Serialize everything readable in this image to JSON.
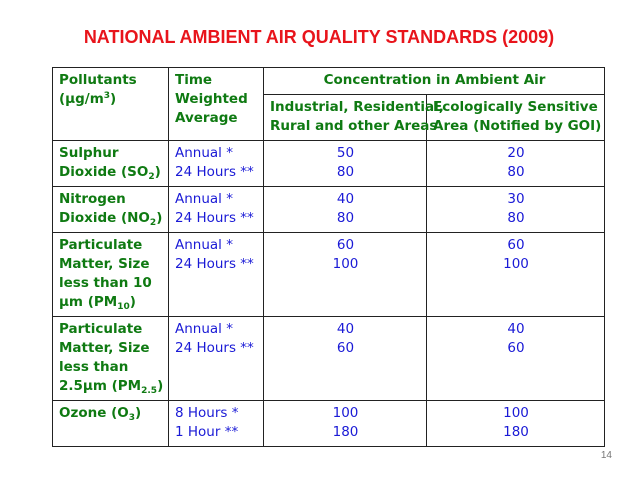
{
  "title": "NATIONAL AMBIENT AIR QUALITY STANDARDS (2009)",
  "header": {
    "pollutants": "Pollutants",
    "unit_prefix": "(µg/m",
    "unit_sup": "3",
    "unit_suffix": ")",
    "time_line1": "Time",
    "time_line2": "Weighted",
    "time_line3": "Average",
    "concentration": "Concentration in Ambient Air",
    "col1_line1": "Industrial, Residential,",
    "col1_line2": "Rural and other Areas",
    "col2_line1": "Ecologically Sensitive",
    "col2_line2": "Area (Notified by GOI)"
  },
  "rows": [
    {
      "name": [
        "Sulphur",
        "Dioxide (SO"
      ],
      "name_sub": "2",
      "name_tail": ")",
      "time": [
        "Annual *",
        "24 Hours **"
      ],
      "industrial": [
        "50",
        "80"
      ],
      "sensitive": [
        "20",
        "80"
      ]
    },
    {
      "name": [
        "Nitrogen",
        "Dioxide (NO"
      ],
      "name_sub": "2",
      "name_tail": ")",
      "time": [
        "Annual *",
        "24 Hours **"
      ],
      "industrial": [
        "40",
        "80"
      ],
      "sensitive": [
        "30",
        "80"
      ]
    },
    {
      "name": [
        "Particulate",
        "Matter, Size",
        "less than 10",
        "µm (PM"
      ],
      "name_sub": "10",
      "name_tail": ")",
      "time": [
        "Annual *",
        "24 Hours **"
      ],
      "industrial": [
        "60",
        "100"
      ],
      "sensitive": [
        "60",
        "100"
      ]
    },
    {
      "name": [
        "Particulate",
        "Matter, Size",
        "less than",
        "2.5µm (PM"
      ],
      "name_sub": "2.5",
      "name_tail": ")",
      "time": [
        "Annual *",
        "24 Hours **"
      ],
      "industrial": [
        "40",
        "60"
      ],
      "sensitive": [
        "40",
        "60"
      ]
    },
    {
      "name": [
        "Ozone (O"
      ],
      "name_sub": "3",
      "name_tail": ")",
      "time": [
        "8 Hours *",
        "1 Hour **"
      ],
      "industrial": [
        "100",
        "180"
      ],
      "sensitive": [
        "100",
        "180"
      ]
    }
  ],
  "page_number": "14"
}
